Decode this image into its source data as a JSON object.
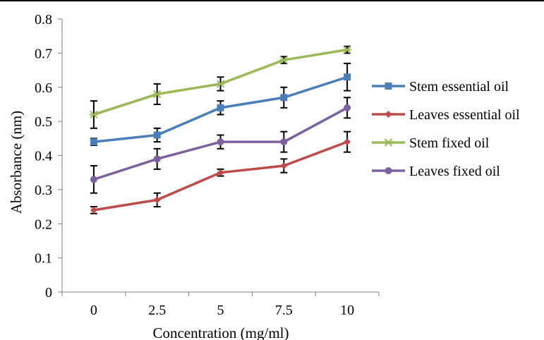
{
  "chart_data": {
    "type": "line",
    "xlabel": "Concentration (mg/ml)",
    "ylabel": "Absorbance (nm)",
    "categories": [
      "0",
      "2.5",
      "5",
      "7.5",
      "10"
    ],
    "ylim": [
      0,
      0.8
    ],
    "yticks": [
      "0",
      "0.1",
      "0.2",
      "0.3",
      "0.4",
      "0.5",
      "0.6",
      "0.7",
      "0.8"
    ],
    "grid": false,
    "legend_position": "right",
    "series": [
      {
        "name": "Stem essential oil",
        "color": "#4a7ebb",
        "marker": "square",
        "values": [
          0.44,
          0.46,
          0.54,
          0.57,
          0.63
        ],
        "errors": [
          0.01,
          0.02,
          0.02,
          0.03,
          0.04
        ]
      },
      {
        "name": "Leaves essential oil",
        "color": "#be4b48",
        "marker": "diamond",
        "values": [
          0.24,
          0.27,
          0.35,
          0.37,
          0.44
        ],
        "errors": [
          0.01,
          0.02,
          0.01,
          0.02,
          0.03
        ]
      },
      {
        "name": "Stem fixed oil",
        "color": "#98b954",
        "marker": "star",
        "values": [
          0.52,
          0.58,
          0.61,
          0.68,
          0.71
        ],
        "errors": [
          0.04,
          0.03,
          0.02,
          0.01,
          0.01
        ]
      },
      {
        "name": "Leaves fixed oil",
        "color": "#7d60a0",
        "marker": "circle",
        "values": [
          0.33,
          0.39,
          0.44,
          0.44,
          0.54
        ],
        "errors": [
          0.04,
          0.03,
          0.02,
          0.03,
          0.03
        ]
      }
    ]
  }
}
